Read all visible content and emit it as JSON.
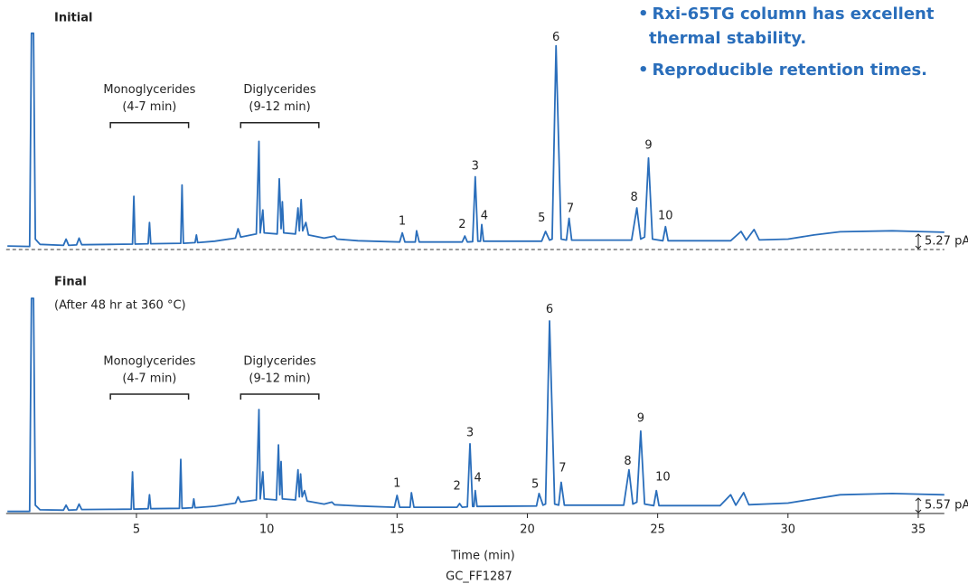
{
  "chart_data": [
    {
      "type": "line",
      "title": "Initial",
      "color": "#2a6ebb",
      "xlim": [
        0,
        36
      ],
      "ylim": [
        0,
        100
      ],
      "offset_label": "5.27 pA",
      "x": [
        0.05,
        0.9,
        0.97,
        1.05,
        1.12,
        1.3,
        2.2,
        2.3,
        2.4,
        2.7,
        2.8,
        2.9,
        4.0,
        4.85,
        4.9,
        4.95,
        5.45,
        5.5,
        5.55,
        6.7,
        6.75,
        6.8,
        7.25,
        7.3,
        7.35,
        8.0,
        8.8,
        8.9,
        9.0,
        9.6,
        9.7,
        9.75,
        9.85,
        9.9,
        10.4,
        10.48,
        10.55,
        10.6,
        10.65,
        11.1,
        11.2,
        11.25,
        11.32,
        11.38,
        11.5,
        11.6,
        12.2,
        12.6,
        12.7,
        13.5,
        15.1,
        15.2,
        15.3,
        15.7,
        15.75,
        15.85,
        17.5,
        17.6,
        17.7,
        17.9,
        18.0,
        18.1,
        18.2,
        18.25,
        18.32,
        20.55,
        20.7,
        20.85,
        20.95,
        21.1,
        21.3,
        21.5,
        21.6,
        21.7,
        24.0,
        24.2,
        24.35,
        24.5,
        24.65,
        24.8,
        25.2,
        25.3,
        25.4,
        27.8,
        28.2,
        28.4,
        28.7,
        28.9,
        30,
        31,
        32,
        34,
        36
      ],
      "values": [
        1.7,
        1.5,
        104,
        104,
        5,
        2.5,
        2,
        5,
        2,
        2.2,
        5.5,
        2.3,
        2.5,
        2.6,
        25.6,
        2.6,
        2.8,
        13,
        2.8,
        3,
        31,
        3,
        3.3,
        7,
        3.3,
        4,
        5.5,
        10,
        6,
        7.5,
        52,
        8,
        19,
        8,
        7.5,
        34,
        10,
        23,
        8,
        7.5,
        20,
        9,
        24,
        9,
        13,
        7,
        5.5,
        6.5,
        5,
        4.2,
        3.6,
        8,
        3.6,
        3.6,
        9,
        3.6,
        3.6,
        6.5,
        3.6,
        3.8,
        35,
        4,
        4,
        12,
        4,
        4,
        8.7,
        4.5,
        5,
        98,
        5,
        4.5,
        15,
        4.5,
        4.5,
        20,
        5,
        6,
        44,
        5,
        4.2,
        11,
        4.2,
        4.2,
        8.7,
        4.5,
        9.6,
        4.6,
        5,
        7,
        8.5,
        9,
        8.3
      ],
      "brackets": [
        {
          "text": "Monoglycerides",
          "subtext": "(4-7 min)",
          "x": [
            4,
            7
          ],
          "y": 61
        },
        {
          "text": "Diglycerides",
          "subtext": "(9-12 min)",
          "x": [
            9,
            12
          ],
          "y": 61
        }
      ],
      "peak_labels": [
        {
          "text": "1",
          "x": 15.2,
          "y": 13.5
        },
        {
          "text": "2",
          "x": 17.5,
          "y": 12
        },
        {
          "text": "3",
          "x": 18.0,
          "y": 40
        },
        {
          "text": "4",
          "x": 18.35,
          "y": 16
        },
        {
          "text": "5",
          "x": 20.55,
          "y": 15
        },
        {
          "text": "6",
          "x": 21.1,
          "y": 102
        },
        {
          "text": "7",
          "x": 21.65,
          "y": 19.6
        },
        {
          "text": "8",
          "x": 24.1,
          "y": 25
        },
        {
          "text": "9",
          "x": 24.65,
          "y": 50
        },
        {
          "text": "10",
          "x": 25.3,
          "y": 16
        }
      ]
    },
    {
      "type": "line",
      "title": "Final",
      "subtitle": "(After 48 hr at 360 °C)",
      "color": "#2a6ebb",
      "xlim": [
        0,
        36
      ],
      "ylim": [
        0,
        100
      ],
      "offset_label": "5.57 pA",
      "x_label": "Time (min)",
      "xticks": [
        5,
        10,
        15,
        20,
        25,
        30,
        35
      ],
      "x": [
        0.05,
        0.9,
        0.97,
        1.05,
        1.12,
        1.3,
        2.2,
        2.3,
        2.4,
        2.7,
        2.8,
        2.9,
        4.0,
        4.8,
        4.85,
        4.9,
        5.45,
        5.5,
        5.55,
        6.65,
        6.7,
        6.75,
        7.15,
        7.2,
        7.25,
        8.0,
        8.8,
        8.9,
        9.0,
        9.6,
        9.7,
        9.75,
        9.85,
        9.9,
        10.37,
        10.45,
        10.5,
        10.55,
        10.6,
        11.1,
        11.2,
        11.25,
        11.3,
        11.36,
        11.45,
        11.55,
        12.2,
        12.5,
        12.6,
        13.5,
        14.9,
        15.0,
        15.1,
        15.5,
        15.55,
        15.65,
        17.3,
        17.4,
        17.5,
        17.7,
        17.8,
        17.9,
        17.95,
        18.0,
        18.07,
        20.35,
        20.45,
        20.6,
        20.7,
        20.85,
        21.05,
        21.2,
        21.3,
        21.42,
        23.7,
        23.9,
        24.05,
        24.2,
        24.35,
        24.5,
        24.85,
        24.95,
        25.05,
        27.4,
        27.8,
        28.0,
        28.3,
        28.5,
        30,
        31,
        32,
        34,
        36
      ],
      "values": [
        1,
        1,
        103.5,
        103.5,
        4,
        1.8,
        1.6,
        4,
        1.6,
        1.8,
        4.5,
        1.9,
        2,
        2.1,
        20,
        2.1,
        2.3,
        9,
        2.3,
        2.5,
        26,
        2.5,
        2.8,
        7,
        2.8,
        3.5,
        5,
        8,
        5.5,
        6.5,
        50,
        7,
        20,
        7,
        6.5,
        33,
        9,
        25,
        7,
        6.5,
        21,
        8,
        19,
        8,
        11,
        6,
        4.5,
        5.5,
        4.2,
        3.6,
        3,
        8.7,
        3,
        3,
        10,
        3,
        3,
        4.8,
        3,
        3.2,
        33.5,
        3.4,
        3.4,
        11,
        3.4,
        3.6,
        9.6,
        4,
        4.5,
        92.6,
        4.5,
        4,
        15,
        4,
        4,
        21,
        4.5,
        5.5,
        39.6,
        4.5,
        3.8,
        11,
        3.8,
        3.8,
        9,
        4,
        10,
        4.2,
        5,
        7,
        9,
        9.6,
        9
      ],
      "brackets": [
        {
          "text": "Monoglycerides",
          "subtext": "(4-7 min)",
          "x": [
            4,
            7
          ],
          "y": 57.4
        },
        {
          "text": "Diglycerides",
          "subtext": "(9-12 min)",
          "x": [
            9,
            12
          ],
          "y": 57.4
        }
      ],
      "peak_labels": [
        {
          "text": "1",
          "x": 15.0,
          "y": 14.3
        },
        {
          "text": "2",
          "x": 17.3,
          "y": 13
        },
        {
          "text": "3",
          "x": 17.8,
          "y": 38.7
        },
        {
          "text": "4",
          "x": 18.1,
          "y": 17
        },
        {
          "text": "5",
          "x": 20.3,
          "y": 14
        },
        {
          "text": "6",
          "x": 20.85,
          "y": 98
        },
        {
          "text": "7",
          "x": 21.35,
          "y": 21.7
        },
        {
          "text": "8",
          "x": 23.85,
          "y": 25
        },
        {
          "text": "9",
          "x": 24.35,
          "y": 45.6
        },
        {
          "text": "10",
          "x": 25.2,
          "y": 17.4
        }
      ]
    }
  ],
  "notes": [
    "Rxi-65TG column has excellent thermal stability.",
    "Reproducible retention times."
  ],
  "footer": "GC_FF1287"
}
